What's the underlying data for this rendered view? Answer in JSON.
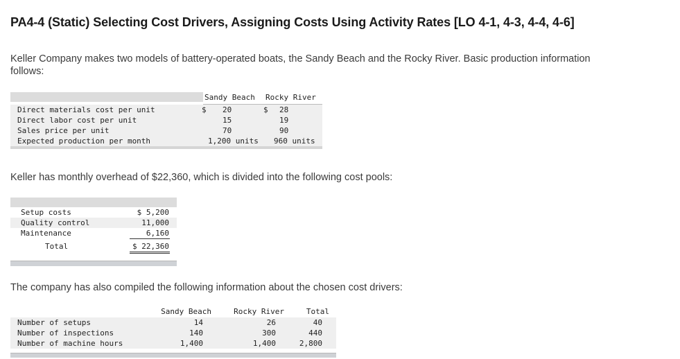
{
  "title": "PA4-4 (Static) Selecting Cost Drivers, Assigning Costs Using Activity Rates [LO 4-1, 4-3, 4-4, 4-6]",
  "intro": {
    "line1": "Keller Company makes two models of battery-operated boats, the Sandy Beach and the Rocky River. Basic production information",
    "line2": "follows:"
  },
  "production_table": {
    "headers": [
      "Sandy Beach",
      "Rocky River"
    ],
    "rows": [
      {
        "label": "Direct materials cost per unit",
        "sandy_cur": "$",
        "sandy": "20",
        "rocky_cur": "$",
        "rocky": "28"
      },
      {
        "label": "Direct labor cost per unit",
        "sandy_cur": "",
        "sandy": "15",
        "rocky_cur": "",
        "rocky": "19"
      },
      {
        "label": "Sales price per unit",
        "sandy_cur": "",
        "sandy": "70",
        "rocky_cur": "",
        "rocky": "90"
      },
      {
        "label": "Expected production per month",
        "sandy_cur": "",
        "sandy": "1,200 units",
        "rocky_cur": "",
        "rocky": "960 units"
      }
    ]
  },
  "overhead_text": "Keller has monthly overhead of $22,360, which is divided into the following cost pools:",
  "cost_pools": {
    "rows": [
      {
        "label": "Setup costs",
        "value": "$  5,200"
      },
      {
        "label": "Quality control",
        "value": "11,000"
      },
      {
        "label": "Maintenance",
        "value": "6,160"
      }
    ],
    "total": {
      "label": "Total",
      "value": "$ 22,360"
    }
  },
  "drivers_text": "The company has also compiled the following information about the chosen cost drivers:",
  "drivers_table": {
    "headers": [
      "Sandy Beach",
      "Rocky River",
      "Total"
    ],
    "rows": [
      {
        "label": "Number of setups",
        "sandy": "14",
        "rocky": "26",
        "total": "40"
      },
      {
        "label": "Number of inspections",
        "sandy": "140",
        "rocky": "300",
        "total": "440"
      },
      {
        "label": "Number of machine hours",
        "sandy": "1,400",
        "rocky": "1,400",
        "total": "2,800"
      }
    ]
  }
}
